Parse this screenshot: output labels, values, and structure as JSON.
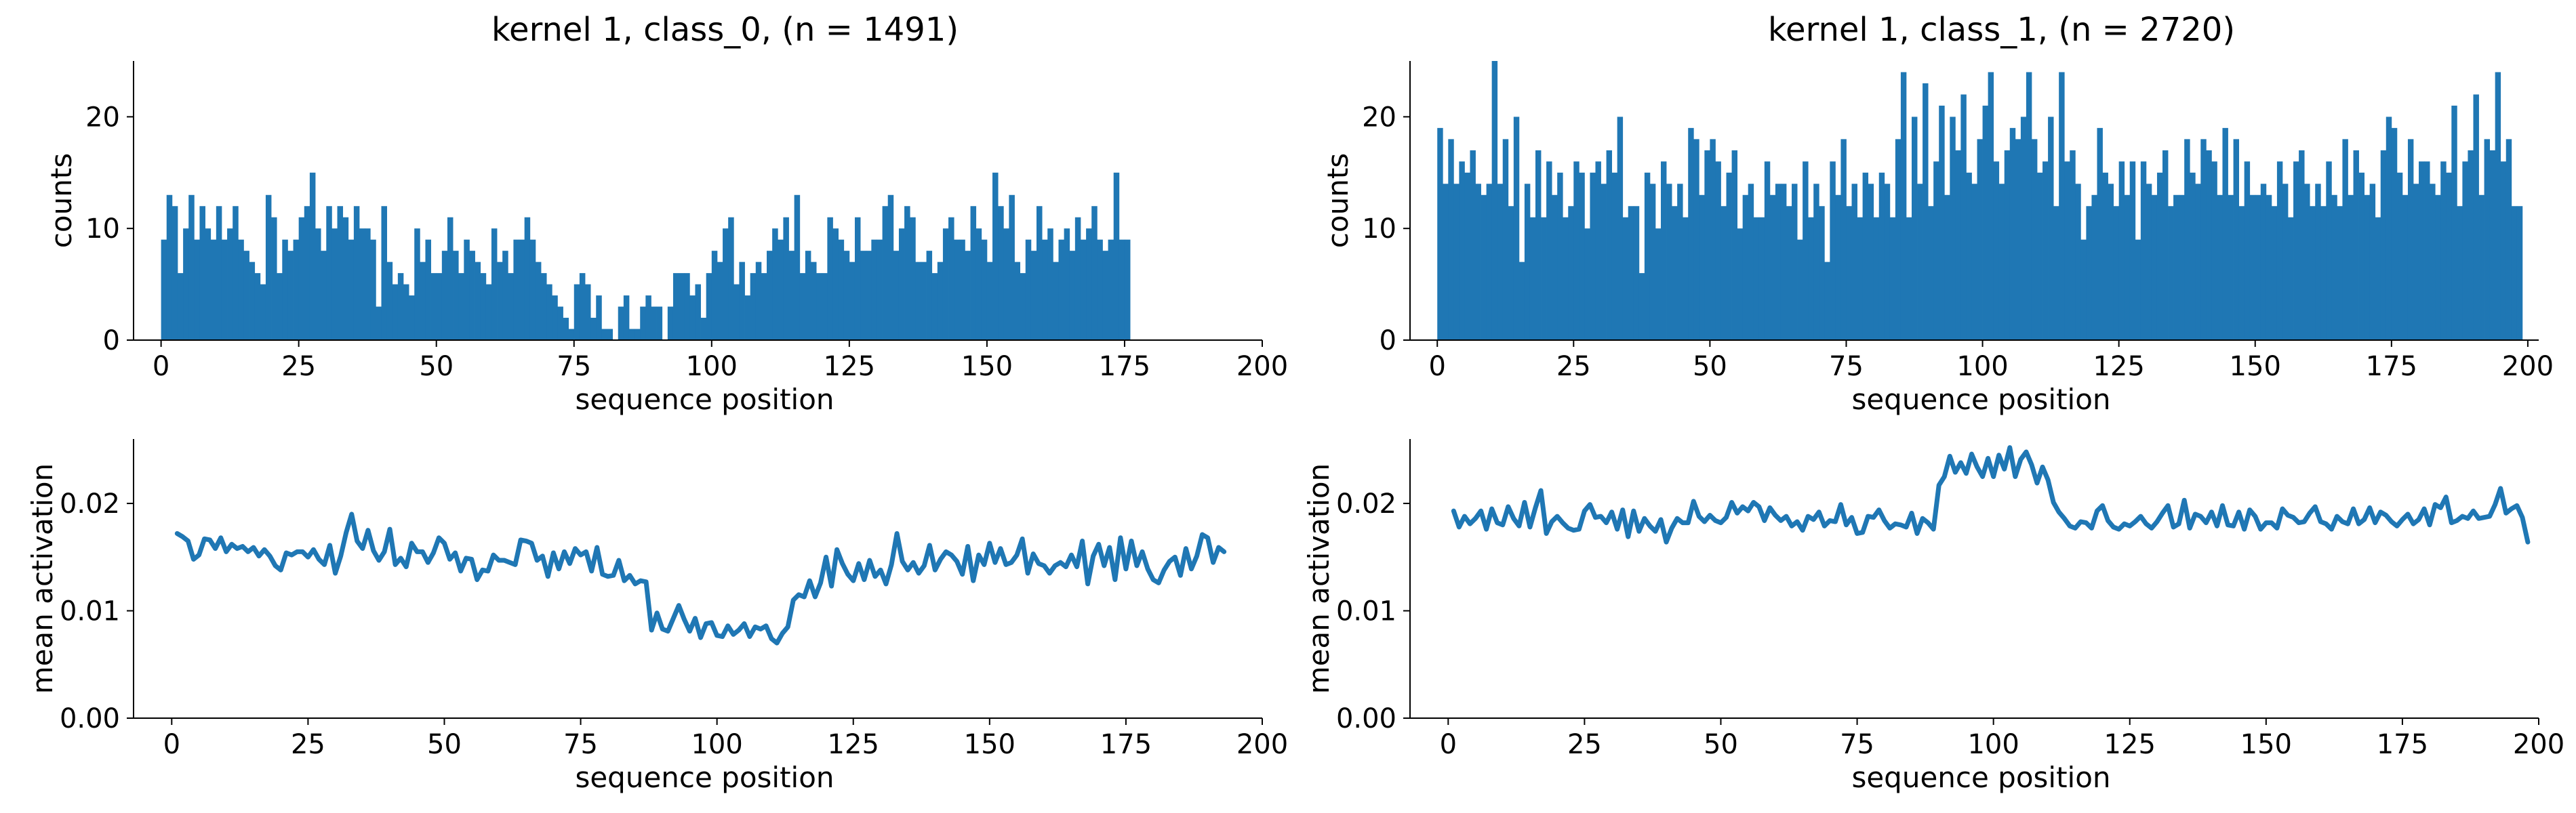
{
  "colors": {
    "series": "#1f77b4",
    "axis": "#000000",
    "background": "#ffffff"
  },
  "chart_data": [
    {
      "type": "bar",
      "title": "kernel 1, class_0, (n = 1491)",
      "xlabel": "sequence position",
      "ylabel": "counts",
      "xlim": [
        -5,
        200
      ],
      "ylim": [
        0,
        25
      ],
      "xticks": [
        0,
        25,
        50,
        75,
        100,
        125,
        150,
        175,
        200
      ],
      "xtick_labels": [
        "0",
        "25",
        "50",
        "75",
        "100",
        "125",
        "150",
        "175",
        "200"
      ],
      "yticks": [
        0,
        10,
        20
      ],
      "ytick_labels": [
        "0",
        "10",
        "20"
      ],
      "grid": false,
      "x_start": 0,
      "bin_width": 1,
      "values": [
        9,
        13,
        12,
        6,
        10,
        13,
        9,
        12,
        10,
        9,
        12,
        9,
        10,
        12,
        9,
        8,
        7,
        6,
        5,
        13,
        11,
        6,
        9,
        8,
        9,
        11,
        12,
        15,
        10,
        8,
        12,
        10,
        12,
        11,
        9,
        12,
        10,
        10,
        9,
        3,
        12,
        7,
        5,
        6,
        5,
        4,
        10,
        7,
        9,
        6,
        6,
        8,
        11,
        8,
        6,
        9,
        8,
        7,
        6,
        5,
        10,
        7,
        8,
        6,
        9,
        9,
        11,
        9,
        7,
        6,
        5,
        4,
        3,
        2,
        1,
        5,
        6,
        5,
        2,
        4,
        1,
        1,
        0,
        3,
        4,
        1,
        1,
        3,
        4,
        3,
        3,
        0,
        3,
        6,
        6,
        6,
        4,
        5,
        2,
        6,
        8,
        7,
        10,
        11,
        5,
        7,
        4,
        6,
        7,
        6,
        8,
        10,
        9,
        11,
        8,
        13,
        6,
        8,
        7,
        6,
        6,
        11,
        10,
        9,
        8,
        7,
        11,
        8,
        8,
        9,
        9,
        12,
        13,
        8,
        10,
        12,
        11,
        7,
        7,
        8,
        6,
        7,
        10,
        11,
        9,
        9,
        8,
        12,
        10,
        9,
        7,
        15,
        12,
        10,
        13,
        7,
        6,
        9,
        8,
        12,
        9,
        10,
        7,
        9,
        10,
        8,
        11,
        9,
        10,
        12,
        9,
        8,
        9,
        15,
        9,
        9
      ]
    },
    {
      "type": "line",
      "title": "",
      "xlabel": "sequence position",
      "ylabel": "mean activation",
      "xlim": [
        -7,
        200
      ],
      "ylim": [
        0.0,
        0.026
      ],
      "xticks": [
        0,
        25,
        50,
        75,
        100,
        125,
        150,
        175,
        200
      ],
      "xtick_labels": [
        "0",
        "25",
        "50",
        "75",
        "100",
        "125",
        "150",
        "175",
        "200"
      ],
      "yticks": [
        0.0,
        0.01,
        0.02
      ],
      "ytick_labels": [
        "0.00",
        "0.01",
        "0.02"
      ],
      "grid": false,
      "x_start": 1,
      "values": [
        0.0172,
        0.0169,
        0.0165,
        0.0148,
        0.0152,
        0.0167,
        0.0166,
        0.0158,
        0.0168,
        0.0155,
        0.0162,
        0.0158,
        0.016,
        0.0155,
        0.0159,
        0.0151,
        0.0157,
        0.0151,
        0.0142,
        0.0138,
        0.0154,
        0.0152,
        0.0155,
        0.0155,
        0.015,
        0.0157,
        0.0148,
        0.0143,
        0.0161,
        0.0135,
        0.0151,
        0.0173,
        0.019,
        0.0165,
        0.0158,
        0.0175,
        0.0156,
        0.0147,
        0.0155,
        0.0176,
        0.0143,
        0.0149,
        0.0141,
        0.0163,
        0.0155,
        0.0155,
        0.0145,
        0.0154,
        0.0168,
        0.0163,
        0.0148,
        0.0154,
        0.0137,
        0.0149,
        0.0148,
        0.0129,
        0.0138,
        0.0137,
        0.0152,
        0.0147,
        0.0147,
        0.0145,
        0.0143,
        0.0166,
        0.0165,
        0.0163,
        0.0147,
        0.0151,
        0.0132,
        0.0154,
        0.0139,
        0.0155,
        0.0144,
        0.0158,
        0.0152,
        0.0155,
        0.0137,
        0.0159,
        0.0134,
        0.0132,
        0.0133,
        0.0147,
        0.0128,
        0.0133,
        0.0125,
        0.0128,
        0.0127,
        0.0082,
        0.0098,
        0.0083,
        0.0081,
        0.0093,
        0.0105,
        0.0092,
        0.0081,
        0.0093,
        0.0075,
        0.0088,
        0.0089,
        0.0077,
        0.0076,
        0.0086,
        0.0078,
        0.0082,
        0.0088,
        0.0076,
        0.0085,
        0.0083,
        0.0086,
        0.0074,
        0.007,
        0.0079,
        0.0085,
        0.011,
        0.0115,
        0.0113,
        0.0128,
        0.0113,
        0.0126,
        0.015,
        0.0123,
        0.0157,
        0.0144,
        0.0134,
        0.0128,
        0.0144,
        0.0129,
        0.0147,
        0.0132,
        0.0138,
        0.0125,
        0.0143,
        0.0172,
        0.0146,
        0.0138,
        0.0145,
        0.0135,
        0.0142,
        0.0161,
        0.0138,
        0.0148,
        0.0155,
        0.0152,
        0.0146,
        0.0134,
        0.016,
        0.0128,
        0.0152,
        0.0143,
        0.0163,
        0.0145,
        0.0158,
        0.0143,
        0.0145,
        0.0152,
        0.0167,
        0.0135,
        0.0153,
        0.0144,
        0.0142,
        0.0135,
        0.0142,
        0.0145,
        0.0141,
        0.0152,
        0.0141,
        0.0165,
        0.0125,
        0.0151,
        0.0162,
        0.0142,
        0.0159,
        0.0129,
        0.0168,
        0.0139,
        0.0165,
        0.0142,
        0.0155,
        0.0139,
        0.0129,
        0.0126,
        0.0138,
        0.0146,
        0.015,
        0.0133,
        0.0158,
        0.0139,
        0.0151,
        0.0171,
        0.0168,
        0.0145,
        0.0159,
        0.0155
      ]
    },
    {
      "type": "bar",
      "title": "kernel 1, class_1, (n = 2720)",
      "xlabel": "sequence position",
      "ylabel": "counts",
      "xlim": [
        -5,
        202
      ],
      "ylim": [
        0,
        25
      ],
      "xticks": [
        0,
        25,
        50,
        75,
        100,
        125,
        150,
        175,
        200
      ],
      "xtick_labels": [
        "0",
        "25",
        "50",
        "75",
        "100",
        "125",
        "150",
        "175",
        "200"
      ],
      "yticks": [
        0,
        10,
        20
      ],
      "ytick_labels": [
        "0",
        "10",
        "20"
      ],
      "grid": false,
      "x_start": 0,
      "bin_width": 1,
      "values": [
        19,
        14,
        18,
        14,
        16,
        15,
        17,
        14,
        13,
        14,
        25,
        14,
        18,
        12,
        20,
        7,
        14,
        11,
        17,
        11,
        16,
        13,
        15,
        11,
        12,
        16,
        15,
        10,
        15,
        16,
        14,
        17,
        15,
        20,
        11,
        12,
        12,
        6,
        15,
        14,
        10,
        16,
        14,
        12,
        14,
        11,
        19,
        18,
        13,
        17,
        18,
        16,
        12,
        15,
        17,
        10,
        13,
        14,
        11,
        11,
        16,
        13,
        14,
        14,
        12,
        14,
        9,
        16,
        11,
        14,
        12,
        7,
        16,
        13,
        18,
        12,
        14,
        11,
        15,
        14,
        11,
        15,
        14,
        11,
        18,
        24,
        11,
        20,
        14,
        23,
        12,
        16,
        21,
        13,
        20,
        17,
        22,
        15,
        14,
        18,
        21,
        24,
        16,
        14,
        17,
        19,
        18,
        20,
        24,
        18,
        15,
        16,
        20,
        12,
        24,
        16,
        17,
        14,
        9,
        12,
        13,
        19,
        15,
        14,
        12,
        16,
        13,
        16,
        9,
        16,
        14,
        13,
        15,
        17,
        12,
        13,
        13,
        18,
        15,
        14,
        18,
        17,
        16,
        13,
        19,
        13,
        18,
        12,
        16,
        13,
        13,
        14,
        13,
        12,
        16,
        14,
        11,
        16,
        17,
        14,
        12,
        14,
        12,
        16,
        13,
        12,
        18,
        13,
        17,
        15,
        13,
        14,
        11,
        17,
        20,
        19,
        15,
        13,
        18,
        14,
        16,
        16,
        14,
        13,
        16,
        15,
        21,
        12,
        16,
        17,
        22,
        13,
        18,
        17,
        24,
        16,
        18,
        12,
        12
      ]
    },
    {
      "type": "line",
      "title": "",
      "xlabel": "sequence position",
      "ylabel": "mean activation",
      "xlim": [
        -7,
        200
      ],
      "ylim": [
        0.0,
        0.026
      ],
      "xticks": [
        0,
        25,
        50,
        75,
        100,
        125,
        150,
        175,
        200
      ],
      "xtick_labels": [
        "0",
        "25",
        "50",
        "75",
        "100",
        "125",
        "150",
        "175",
        "200"
      ],
      "yticks": [
        0.0,
        0.01,
        0.02
      ],
      "ytick_labels": [
        "0.00",
        "0.01",
        "0.02"
      ],
      "grid": false,
      "x_start": 1,
      "values": [
        0.0193,
        0.0178,
        0.0188,
        0.0181,
        0.0186,
        0.0193,
        0.0176,
        0.0195,
        0.0182,
        0.018,
        0.0197,
        0.0186,
        0.0179,
        0.0201,
        0.0178,
        0.0196,
        0.0212,
        0.0172,
        0.0183,
        0.0188,
        0.0182,
        0.0177,
        0.0175,
        0.0176,
        0.0193,
        0.0199,
        0.0187,
        0.0188,
        0.0182,
        0.0192,
        0.0176,
        0.0194,
        0.0169,
        0.0193,
        0.0174,
        0.0186,
        0.0179,
        0.0174,
        0.0185,
        0.0164,
        0.0177,
        0.0186,
        0.0182,
        0.0182,
        0.0202,
        0.0188,
        0.0183,
        0.0189,
        0.0184,
        0.0182,
        0.0187,
        0.0201,
        0.0191,
        0.0197,
        0.0193,
        0.0201,
        0.0197,
        0.0184,
        0.0196,
        0.0189,
        0.0184,
        0.0188,
        0.0179,
        0.0183,
        0.0175,
        0.0188,
        0.0185,
        0.0192,
        0.0179,
        0.0184,
        0.0183,
        0.0199,
        0.018,
        0.0187,
        0.0172,
        0.0173,
        0.0188,
        0.0187,
        0.0194,
        0.0184,
        0.0177,
        0.0181,
        0.018,
        0.0178,
        0.0191,
        0.0172,
        0.0186,
        0.0182,
        0.0176,
        0.0217,
        0.0225,
        0.0244,
        0.0229,
        0.0238,
        0.0228,
        0.0246,
        0.0234,
        0.0225,
        0.0242,
        0.0225,
        0.0245,
        0.0232,
        0.0252,
        0.0225,
        0.0241,
        0.0248,
        0.0236,
        0.0219,
        0.0234,
        0.0222,
        0.0201,
        0.0192,
        0.0186,
        0.0179,
        0.0177,
        0.0183,
        0.0182,
        0.0177,
        0.0193,
        0.0198,
        0.0184,
        0.0178,
        0.0176,
        0.0181,
        0.0179,
        0.0183,
        0.0188,
        0.0181,
        0.0177,
        0.0183,
        0.0191,
        0.0198,
        0.0178,
        0.0181,
        0.0203,
        0.0177,
        0.019,
        0.0188,
        0.0182,
        0.0192,
        0.0179,
        0.0198,
        0.018,
        0.0179,
        0.0192,
        0.0176,
        0.0194,
        0.0188,
        0.0176,
        0.0182,
        0.0182,
        0.0177,
        0.0195,
        0.0189,
        0.0187,
        0.0182,
        0.0183,
        0.0191,
        0.0197,
        0.0183,
        0.0181,
        0.0176,
        0.0188,
        0.0183,
        0.0181,
        0.0195,
        0.0181,
        0.0185,
        0.0196,
        0.0182,
        0.0192,
        0.0189,
        0.0183,
        0.0179,
        0.0185,
        0.019,
        0.0181,
        0.0185,
        0.0195,
        0.018,
        0.0199,
        0.0196,
        0.0206,
        0.0182,
        0.0184,
        0.0188,
        0.0186,
        0.0193,
        0.0186,
        0.0187,
        0.0188,
        0.0199,
        0.0214,
        0.0191,
        0.0195,
        0.0198,
        0.0187,
        0.0164
      ]
    }
  ]
}
